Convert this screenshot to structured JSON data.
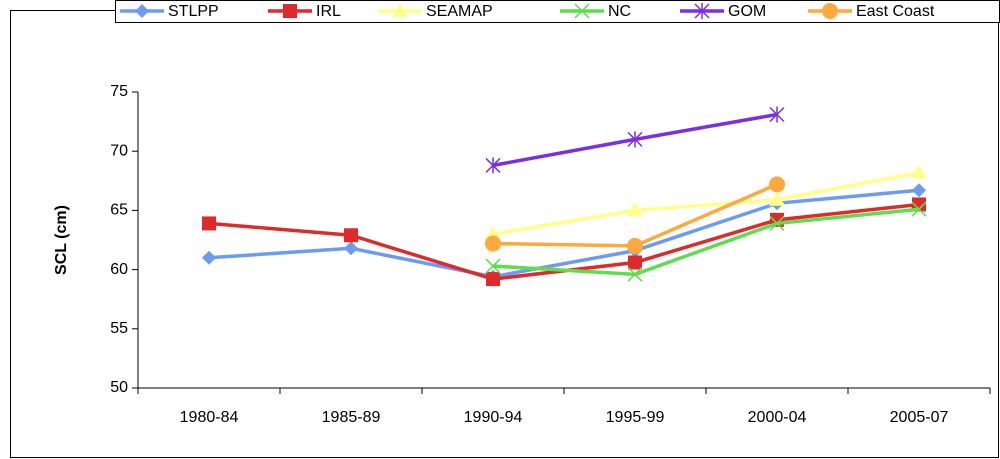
{
  "chart_data": {
    "type": "line",
    "y_label": "SCL (cm)",
    "categories": [
      "1980-84",
      "1985-89",
      "1990-94",
      "1995-99",
      "2000-04",
      "2005-07"
    ],
    "series": [
      {
        "name": "STLPP",
        "color": "#6b9cf0",
        "marker": "diamond",
        "values": [
          61.0,
          61.8,
          59.4,
          61.6,
          65.6,
          66.7
        ]
      },
      {
        "name": "IRL",
        "color": "#dd2a2a",
        "marker": "square",
        "values": [
          63.9,
          62.9,
          59.2,
          60.6,
          64.2,
          65.5
        ]
      },
      {
        "name": "SEAMAP",
        "color": "#ffff8a",
        "marker": "triangle",
        "values": [
          null,
          null,
          63.0,
          65.0,
          65.9,
          68.2
        ]
      },
      {
        "name": "NC",
        "color": "#5ede4e",
        "marker": "x",
        "values": [
          null,
          null,
          60.3,
          59.6,
          63.9,
          65.1
        ]
      },
      {
        "name": "GOM",
        "color": "#7a2ee6",
        "marker": "asterisk",
        "values": [
          null,
          null,
          68.8,
          71.0,
          73.1,
          null
        ]
      },
      {
        "name": "East Coast",
        "color": "#ffa83e",
        "marker": "circle",
        "values": [
          null,
          null,
          62.2,
          62.0,
          67.2,
          null
        ]
      }
    ],
    "ylim": [
      50,
      75
    ],
    "yticks": [
      50,
      55,
      60,
      65,
      70,
      75
    ],
    "grid": false,
    "legend": "top"
  }
}
